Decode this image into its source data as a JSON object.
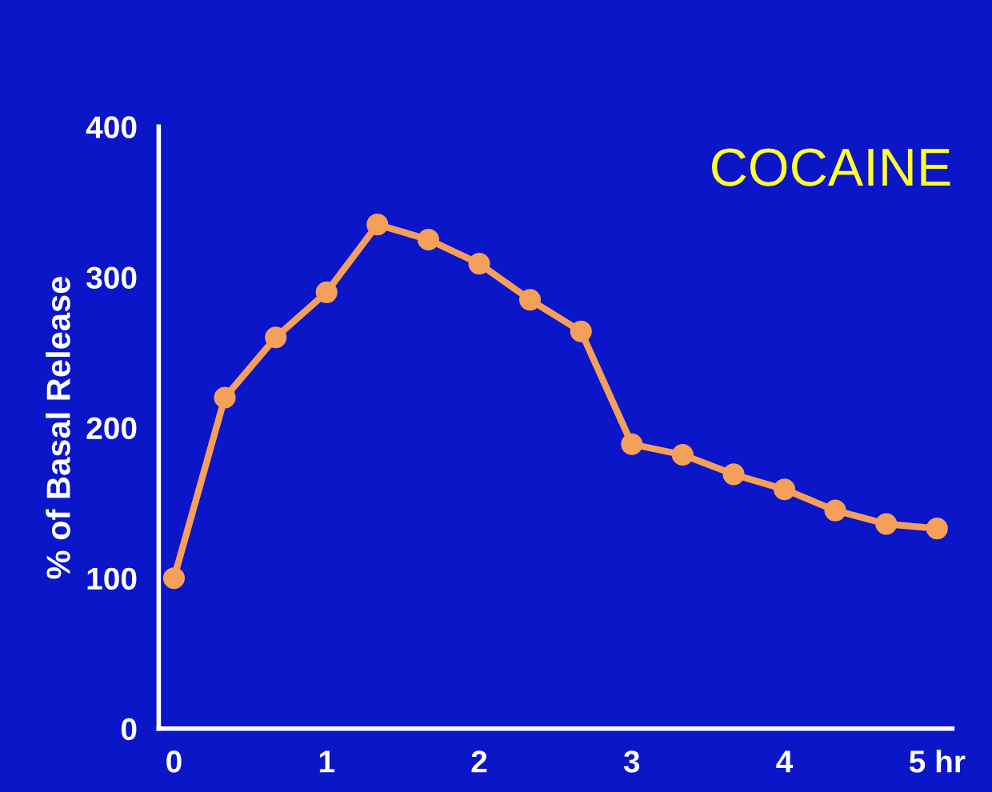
{
  "chart_data": {
    "type": "line",
    "title": "COCAINE",
    "ylabel": "% of Basal Release",
    "x": [
      0,
      0.333,
      0.667,
      1,
      1.333,
      1.667,
      2,
      2.333,
      2.667,
      3,
      3.333,
      3.667,
      4,
      4.333,
      4.667,
      5
    ],
    "series": [
      {
        "color": "#f5a05a",
        "values": [
          100,
          220,
          260,
          290,
          335,
          325,
          309,
          285,
          264,
          189,
          182,
          169,
          159,
          145,
          136,
          133
        ]
      }
    ],
    "xlim": [
      -0.1,
      5.1
    ],
    "ylim": [
      0,
      400
    ],
    "xticks": [
      0,
      1,
      2,
      3,
      4,
      {
        "value": 5,
        "label": "5 hr"
      }
    ],
    "yticks": [
      0,
      100,
      200,
      300,
      400
    ],
    "marker": "circle",
    "line_style": "solid",
    "grid": false,
    "legend": false
  }
}
